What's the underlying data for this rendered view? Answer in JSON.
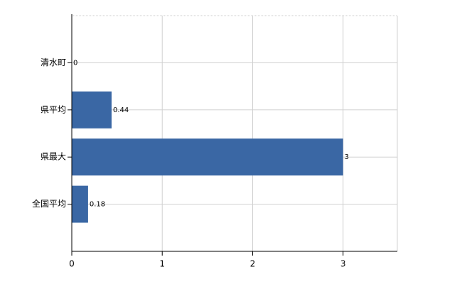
{
  "chart_data": {
    "type": "bar",
    "orientation": "horizontal",
    "categories": [
      "清水町",
      "県平均",
      "県最大",
      "全国平均"
    ],
    "values": [
      0,
      0.44,
      3,
      0.18
    ],
    "color": "#3a67a4",
    "xlim": [
      0,
      3.6
    ],
    "xticks": [
      0,
      1,
      2,
      3
    ],
    "grid": true
  }
}
